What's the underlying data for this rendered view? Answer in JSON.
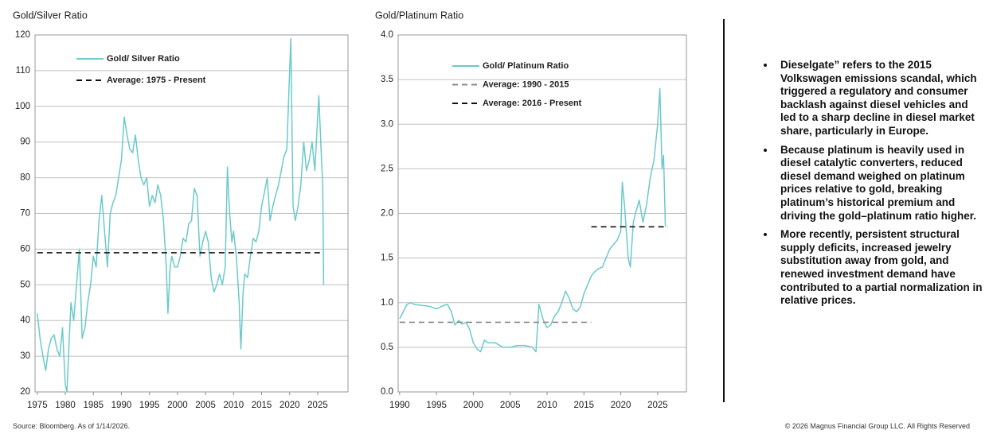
{
  "chart_data": [
    {
      "type": "line",
      "title": "Gold/Silver Ratio",
      "legend": "upper left",
      "grid": true,
      "xlim": [
        1974.6,
        2030.4
      ],
      "xticks": [
        1975,
        1980,
        1985,
        1990,
        1995,
        2000,
        2005,
        2010,
        2015,
        2020,
        2025
      ],
      "ylim": [
        20,
        120
      ],
      "yticks": [
        20,
        30,
        40,
        50,
        60,
        70,
        80,
        90,
        100,
        110,
        120
      ],
      "series": [
        {
          "name": "Gold/ Silver Ratio",
          "color": "#6ccaca",
          "dash": "solid",
          "x": [
            1975,
            1975.5,
            1976,
            1976.5,
            1977,
            1977.5,
            1978,
            1978.5,
            1979,
            1979.5,
            1980,
            1980.3,
            1980.7,
            1981,
            1981.5,
            1982,
            1982.5,
            1983,
            1983.5,
            1984,
            1984.5,
            1985,
            1985.5,
            1986,
            1986.5,
            1987,
            1987.5,
            1988,
            1988.5,
            1989,
            1989.5,
            1990,
            1990.5,
            1991,
            1991.5,
            1992,
            1992.5,
            1993,
            1993.5,
            1994,
            1994.5,
            1995,
            1995.5,
            1996,
            1996.5,
            1997,
            1997.5,
            1998,
            1998.3,
            1998.7,
            1999,
            1999.5,
            2000,
            2000.5,
            2001,
            2001.5,
            2002,
            2002.5,
            2003,
            2003.5,
            2004,
            2004.5,
            2005,
            2005.5,
            2006,
            2006.5,
            2007,
            2007.5,
            2008,
            2008.5,
            2008.9,
            2009.3,
            2009.7,
            2010,
            2010.5,
            2011,
            2011.3,
            2011.7,
            2012,
            2012.5,
            2013,
            2013.5,
            2014,
            2014.5,
            2015,
            2015.5,
            2016,
            2016.5,
            2017,
            2017.5,
            2018,
            2018.5,
            2019,
            2019.5,
            2020.2,
            2020.6,
            2021,
            2021.5,
            2022,
            2022.5,
            2023,
            2023.5,
            2024,
            2024.5,
            2025.2,
            2025.6,
            2025.9,
            2026.05
          ],
          "values": [
            42,
            35,
            30,
            26,
            32,
            35,
            36,
            32,
            30,
            38,
            22,
            20,
            35,
            45,
            40,
            50,
            60,
            35,
            38,
            45,
            50,
            58,
            55,
            68,
            75,
            65,
            55,
            70,
            73,
            75,
            80,
            85,
            97,
            92,
            88,
            87,
            92,
            85,
            80,
            78,
            80,
            72,
            75,
            73,
            78,
            75,
            68,
            55,
            42,
            55,
            58,
            55,
            55,
            58,
            63,
            62,
            67,
            68,
            77,
            75,
            58,
            62,
            65,
            62,
            52,
            48,
            50,
            53,
            50,
            55,
            83,
            70,
            62,
            65,
            58,
            45,
            32,
            48,
            53,
            52,
            58,
            63,
            62,
            65,
            72,
            76,
            80,
            68,
            72,
            75,
            78,
            82,
            86,
            88,
            119,
            72,
            68,
            72,
            78,
            90,
            82,
            85,
            90,
            82,
            103,
            88,
            78,
            50
          ]
        },
        {
          "name": "Average: 1975 - Present",
          "color": "#111111",
          "dash": "dashed",
          "x": [
            1975,
            2026
          ],
          "values": [
            59,
            59
          ]
        }
      ]
    },
    {
      "type": "line",
      "title": "Gold/Platinum Ratio",
      "legend": "upper left",
      "grid": true,
      "xlim": [
        1989.8,
        2028.9
      ],
      "xticks": [
        1990,
        1995,
        2000,
        2005,
        2010,
        2015,
        2020,
        2025
      ],
      "ylim": [
        0,
        4
      ],
      "yticks": [
        {
          "value": 0,
          "label": "0.0"
        },
        0.5,
        {
          "value": 1,
          "label": "1.0"
        },
        1.5,
        {
          "value": 2,
          "label": "2.0"
        },
        2.5,
        {
          "value": 3,
          "label": "3.0"
        },
        3.5,
        {
          "value": 4,
          "label": "4.0"
        }
      ],
      "series": [
        {
          "name": "Gold/ Platinum Ratio",
          "color": "#6ccaca",
          "dash": "solid",
          "x": [
            1990,
            1990.5,
            1991,
            1991.5,
            1992,
            1993,
            1994,
            1995,
            1996,
            1996.5,
            1997,
            1997.5,
            1998,
            1998.5,
            1999,
            1999.5,
            2000,
            2000.5,
            2001,
            2001.5,
            2002,
            2003,
            2004,
            2005,
            2006,
            2007,
            2008,
            2008.5,
            2008.9,
            2009.5,
            2010,
            2010.5,
            2011,
            2011.5,
            2012,
            2012.5,
            2013,
            2013.5,
            2014,
            2014.5,
            2015,
            2015.5,
            2016,
            2016.5,
            2017,
            2017.5,
            2018,
            2018.5,
            2019,
            2019.5,
            2020,
            2020.2,
            2020.5,
            2021,
            2021.3,
            2021.7,
            2022,
            2022.5,
            2023,
            2023.5,
            2024,
            2024.5,
            2025,
            2025.3,
            2025.6,
            2025.8,
            2026.05
          ],
          "values": [
            0.82,
            0.9,
            0.98,
            1.0,
            0.98,
            0.97,
            0.96,
            0.93,
            0.97,
            0.98,
            0.9,
            0.75,
            0.8,
            0.76,
            0.78,
            0.7,
            0.55,
            0.48,
            0.45,
            0.58,
            0.55,
            0.55,
            0.5,
            0.5,
            0.52,
            0.52,
            0.5,
            0.45,
            0.98,
            0.8,
            0.72,
            0.75,
            0.85,
            0.9,
            1.0,
            1.13,
            1.05,
            0.93,
            0.9,
            0.95,
            1.1,
            1.2,
            1.3,
            1.35,
            1.38,
            1.4,
            1.5,
            1.6,
            1.65,
            1.7,
            1.8,
            2.35,
            2.1,
            1.5,
            1.4,
            1.9,
            2.0,
            2.15,
            1.9,
            2.1,
            2.4,
            2.6,
            3.0,
            3.4,
            2.5,
            2.65,
            1.85
          ]
        },
        {
          "name": "Average: 1990 - 2015",
          "color": "#888888",
          "dash": "dashed",
          "x": [
            1990,
            2016
          ],
          "values": [
            0.78,
            0.78
          ]
        },
        {
          "name": "Average: 2016 - Present",
          "color": "#111111",
          "dash": "dashed",
          "x": [
            2016,
            2026.4
          ],
          "values": [
            1.85,
            1.85
          ]
        }
      ]
    }
  ],
  "bullets": [
    "Dieselgate” refers to the 2015 Volkswagen emissions scandal, which triggered a regulatory and consumer backlash against diesel vehicles and led to a sharp decline in diesel market share, particularly in Europe.",
    "Because platinum is heavily used in diesel catalytic converters, reduced diesel demand weighed on platinum prices relative to gold, breaking platinum’s historical premium and driving the gold–platinum ratio higher.",
    "More recently, persistent structural supply deficits, increased jewelry substitution away from gold, and renewed investment demand have contributed to a partial normalization in relative prices."
  ],
  "footer": {
    "source": "Source: Bloomberg. As of 1/14/2026.",
    "copyright": "© 2026 Magnus Financial Group LLC. All Rights Reserved"
  }
}
